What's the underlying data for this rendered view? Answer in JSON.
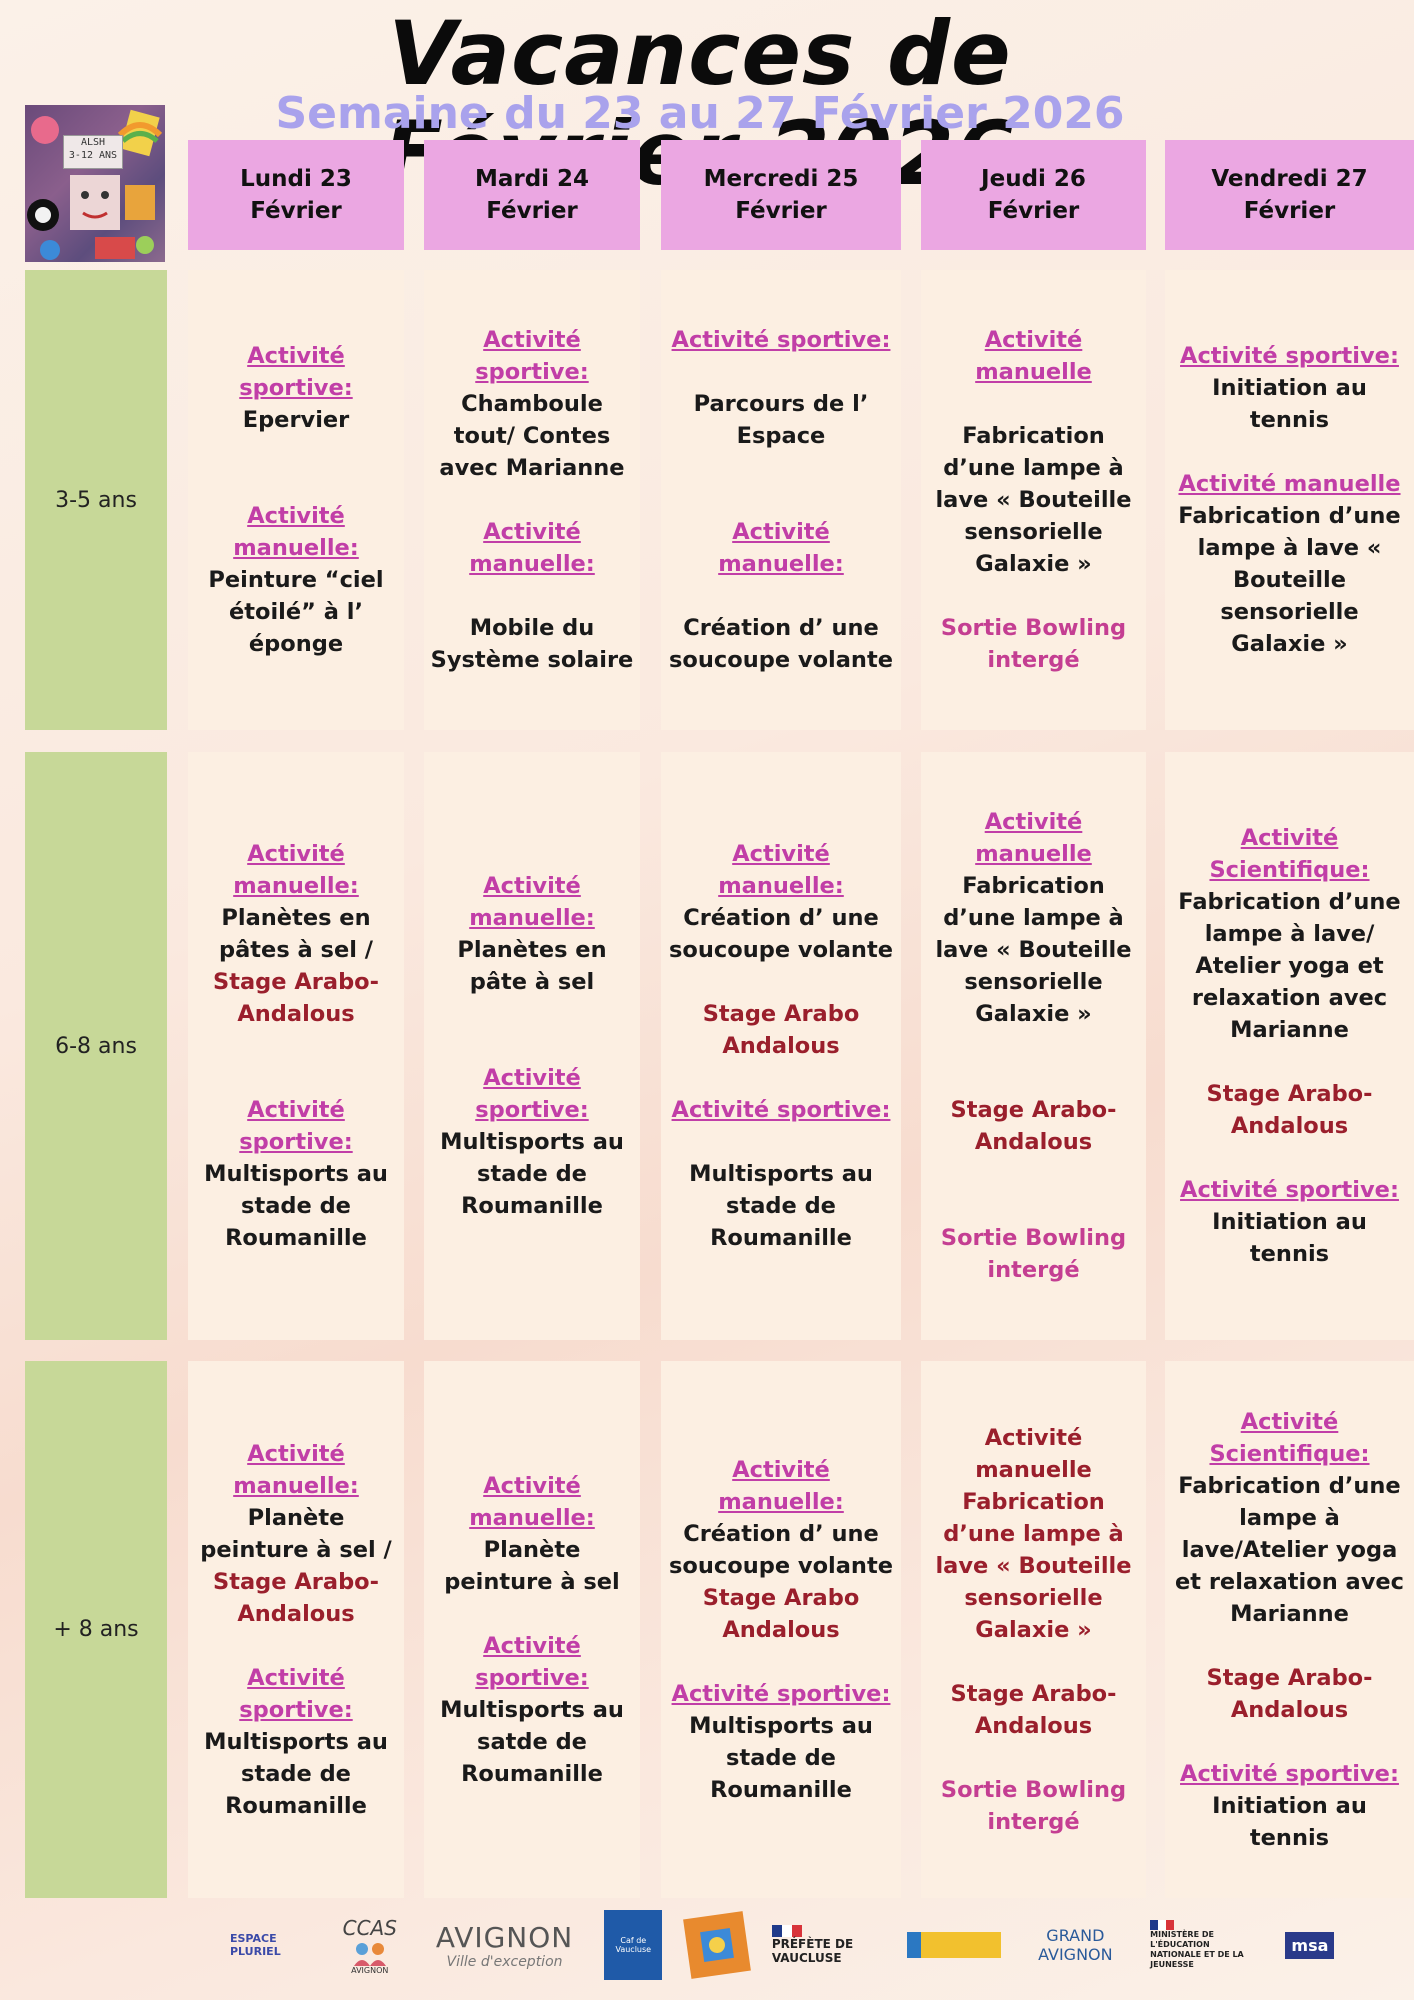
{
  "title": "Vacances de Février 2026",
  "subtitle": "Semaine du 23 au 27 Février 2026",
  "alsh_logo": {
    "text_line1": "ALSH",
    "text_line2": "3-12 ANS"
  },
  "days": [
    {
      "line1": "Lundi 23",
      "line2": "Février"
    },
    {
      "line1": "Mardi 24",
      "line2": "Février"
    },
    {
      "line1": "Mercredi 25",
      "line2": "Février"
    },
    {
      "line1": "Jeudi 26",
      "line2": "Février"
    },
    {
      "line1": "Vendredi 27",
      "line2": "Février"
    }
  ],
  "age_groups": [
    "3-5 ans",
    "6-8 ans",
    "+ 8 ans"
  ],
  "grid": {
    "r0": {
      "c0": {
        "a1": "Activité sportive:",
        "t1": "Epervier",
        "a2": "Activité manuelle:",
        "t2": "Peinture “ciel étoilé” à l’ éponge"
      },
      "c1": {
        "a1": "Activité sportive:",
        "t1": "Chamboule tout/ Contes avec Marianne",
        "a2": "Activité manuelle:",
        "t2": "Mobile du Système solaire"
      },
      "c2": {
        "a1": "Activité sportive:",
        "t1": "Parcours de l’ Espace",
        "a2": "Activité manuelle:",
        "t2": "Création d’ une soucoupe volante"
      },
      "c3": {
        "a1": "Activité manuelle",
        "t1": "Fabrication d’une lampe à lave « Bouteille sensorielle Galaxie »",
        "s1": "Sortie Bowling intergé"
      },
      "c4": {
        "a1": "Activité sportive:",
        "t1": "Initiation au tennis",
        "a2": "Activité manuelle",
        "t2": "Fabrication d’une lampe à lave « Bouteille sensorielle Galaxie »"
      }
    },
    "r1": {
      "c0": {
        "a1": "Activité manuelle:",
        "t1": "Planètes en pâtes à sel /",
        "st1": "Stage Arabo-Andalous",
        "a2": "Activité sportive:",
        "t2": "Multisports au stade de Roumanille"
      },
      "c1": {
        "a1": "Activité manuelle:",
        "t1": "Planètes en pâte à sel",
        "a2": "Activité sportive:",
        "t2": "Multisports au stade de Roumanille"
      },
      "c2": {
        "a1": "Activité manuelle:",
        "t1": "Création d’ une soucoupe volante",
        "st1": "Stage Arabo Andalous",
        "a2": "Activité sportive:",
        "t2": "Multisports au stade de Roumanille"
      },
      "c3": {
        "a1": "Activité manuelle",
        "t1": "Fabrication d’une lampe à lave « Bouteille sensorielle Galaxie »",
        "st1": "Stage Arabo-Andalous",
        "s1": "Sortie Bowling intergé"
      },
      "c4": {
        "a1": "Activité Scientifique:",
        "t1": "Fabrication d’une lampe à lave/ Atelier yoga et relaxation avec Marianne",
        "st1": "Stage Arabo-Andalous",
        "a2": "Activité sportive:",
        "t2": "Initiation au tennis"
      }
    },
    "r2": {
      "c0": {
        "a1": "Activité manuelle:",
        "t1": "Planète peinture à sel /",
        "st1": "Stage Arabo-Andalous",
        "a2": "Activité sportive:",
        "t2": "Multisports au stade de Roumanille"
      },
      "c1": {
        "a1": "Activité manuelle:",
        "t1": "Planète peinture à sel",
        "a2": "Activité sportive:",
        "t2": "Multisports au satde de Roumanille"
      },
      "c2": {
        "a1": "Activité manuelle:",
        "t1": "Création d’ une soucoupe volante",
        "st1": "Stage Arabo Andalous",
        "a2": "Activité sportive:",
        "t2": "Multisports au stade de Roumanille"
      },
      "c3": {
        "st0": "Activité manuelle Fabrication d’une lampe à lave « Bouteille sensorielle Galaxie »",
        "st1": "Stage Arabo-Andalous",
        "s1": "Sortie Bowling intergé"
      },
      "c4": {
        "a1": "Activité Scientifique:",
        "t1": "Fabrication d’une lampe à lave/Atelier yoga et relaxation avec Marianne",
        "st1": "Stage Arabo-Andalous",
        "a2": "Activité sportive:",
        "t2": "Initiation au tennis"
      }
    }
  },
  "footer_logos": {
    "espace": "ESPACE PLURIEL",
    "ccas": "CCAS",
    "ccas_sub": "AVIGNON",
    "avignon": "AVIGNON",
    "avignon_sub": "Ville d'exception",
    "caf": "Caf de Vaucluse",
    "prefete": "PRÉFÈTE DE VAUCLUSE",
    "grand_avignon": "GRAND AVIGNON",
    "ministere": "MINISTÈRE DE L'ÉDUCATION NATIONALE ET DE LA JEUNESSE",
    "msa": "msa"
  },
  "colors": {
    "day_header": "#eba7e2",
    "age_column": "#c7d898",
    "cell": "#fcefe2",
    "activity": "#c13ea7",
    "stage": "#9a1f2c",
    "sortie": "#c43e92",
    "subtitle": "#a9a2ec"
  }
}
